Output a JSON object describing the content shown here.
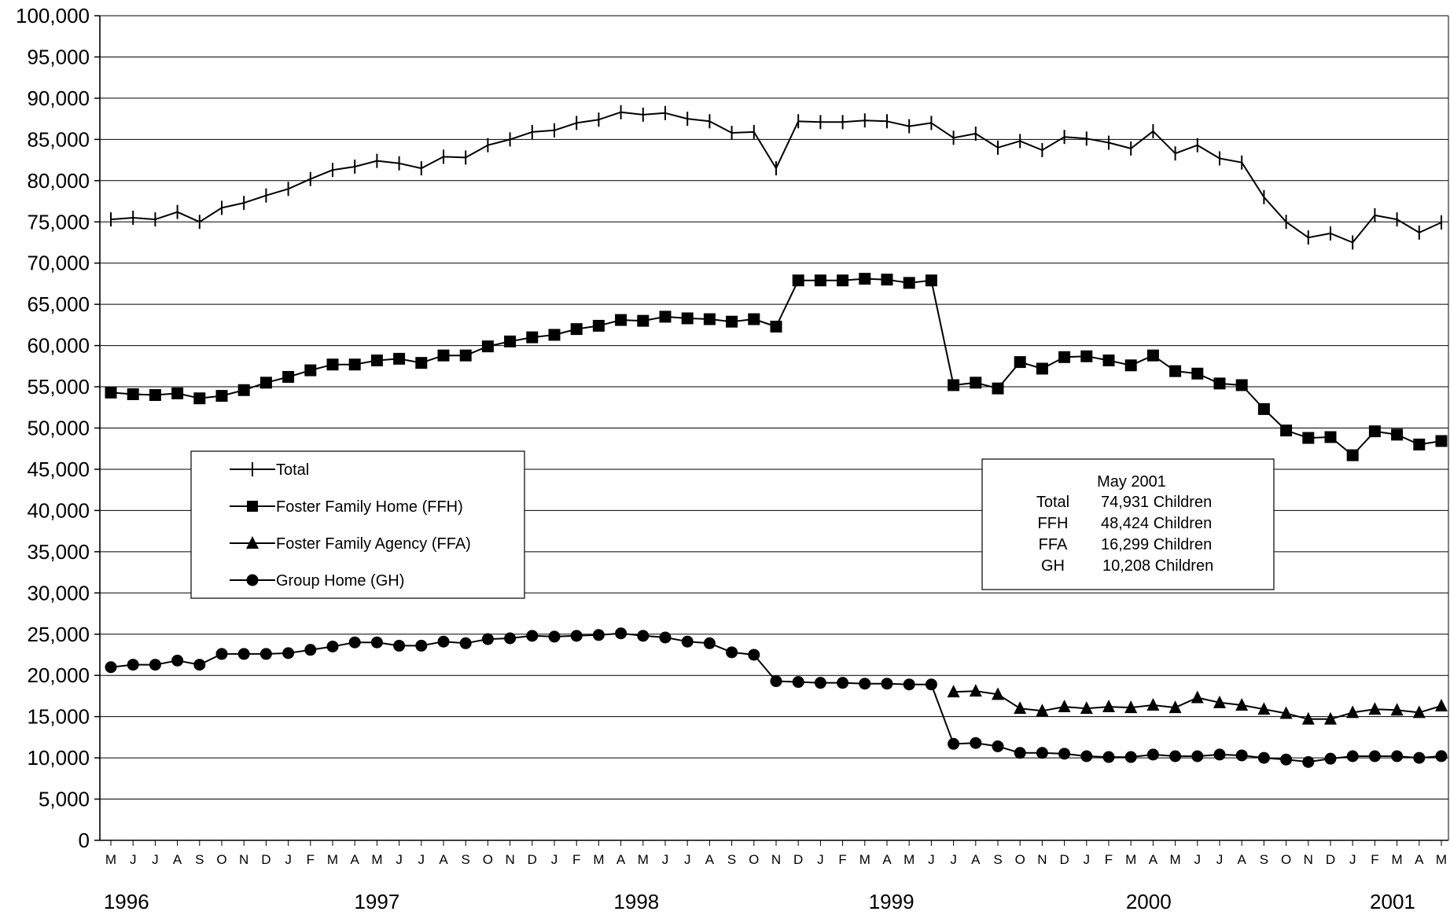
{
  "chart_data": {
    "type": "line",
    "title": "",
    "xlabel": "",
    "ylabel": "",
    "ylim": [
      0,
      100000
    ],
    "y_ticks": [
      "0",
      "5,000",
      "10,000",
      "15,000",
      "20,000",
      "25,000",
      "30,000",
      "35,000",
      "40,000",
      "45,000",
      "50,000",
      "55,000",
      "60,000",
      "65,000",
      "70,000",
      "75,000",
      "80,000",
      "85,000",
      "90,000",
      "95,000",
      "100,000"
    ],
    "grid": "horizontal",
    "month_labels": [
      "M",
      "J",
      "J",
      "A",
      "S",
      "O",
      "N",
      "D",
      "J",
      "F",
      "M",
      "A",
      "M",
      "J",
      "J",
      "A",
      "S",
      "O",
      "N",
      "D",
      "J",
      "F",
      "M",
      "A",
      "M",
      "J",
      "J",
      "A",
      "S",
      "O",
      "N",
      "D",
      "J",
      "F",
      "M",
      "A",
      "M",
      "J",
      "J",
      "A",
      "S",
      "O",
      "N",
      "D",
      "J",
      "F",
      "M",
      "A",
      "M",
      "J",
      "J",
      "A",
      "S",
      "O",
      "N",
      "D",
      "J",
      "F",
      "M",
      "A",
      "M"
    ],
    "year_labels": [
      {
        "label": "1996",
        "index": 0.7
      },
      {
        "label": "1997",
        "index": 12
      },
      {
        "label": "1998",
        "index": 23.7
      },
      {
        "label": "1999",
        "index": 35.2
      },
      {
        "label": "2000",
        "index": 46.8
      },
      {
        "label": "2001",
        "index": 57.8
      }
    ],
    "series": [
      {
        "name": "Total",
        "marker": "plus",
        "start_index": 0,
        "values": [
          75300,
          75500,
          75300,
          76200,
          75000,
          76700,
          77300,
          78200,
          79000,
          80200,
          81300,
          81700,
          82400,
          82100,
          81500,
          82900,
          82800,
          84300,
          85000,
          85900,
          86100,
          87000,
          87400,
          88300,
          88000,
          88200,
          87500,
          87200,
          85800,
          85900,
          81500,
          87200,
          87100,
          87100,
          87300,
          87200,
          86600,
          87000,
          85200,
          85700,
          84000,
          84800,
          83700,
          85300,
          85100,
          84600,
          83900,
          86000,
          83300,
          84300,
          82700,
          82200,
          78000,
          75000,
          73100,
          73600,
          72500,
          75800,
          75300,
          73700,
          74931
        ]
      },
      {
        "name": "Foster Family Home (FFH)",
        "marker": "square",
        "start_index": 0,
        "values": [
          54300,
          54100,
          54000,
          54200,
          53600,
          53900,
          54600,
          55500,
          56200,
          57000,
          57700,
          57700,
          58200,
          58400,
          57900,
          58800,
          58800,
          59900,
          60500,
          61000,
          61300,
          62000,
          62400,
          63100,
          63000,
          63500,
          63300,
          63200,
          62900,
          63200,
          62300,
          67900,
          67900,
          67900,
          68100,
          68000,
          67600,
          67900,
          55200,
          55500,
          54800,
          58000,
          57200,
          58600,
          58700,
          58200,
          57600,
          58800,
          56900,
          56600,
          55400,
          55200,
          52300,
          49700,
          48800,
          48900,
          46700,
          49600,
          49200,
          48000,
          48424
        ]
      },
      {
        "name": "Foster Family Agency (FFA)",
        "marker": "triangle",
        "start_index": 38,
        "values": [
          18000,
          18100,
          17700,
          16000,
          15700,
          16200,
          16000,
          16200,
          16100,
          16400,
          16100,
          17300,
          16700,
          16400,
          15900,
          15400,
          14700,
          14700,
          15500,
          15900,
          15800,
          15500,
          16299
        ]
      },
      {
        "name": "Group Home (GH)",
        "marker": "circle",
        "start_index": 0,
        "values": [
          21000,
          21300,
          21300,
          21800,
          21300,
          22600,
          22600,
          22600,
          22700,
          23100,
          23500,
          24000,
          24000,
          23600,
          23600,
          24100,
          23900,
          24400,
          24500,
          24800,
          24700,
          24800,
          24900,
          25100,
          24800,
          24600,
          24100,
          23900,
          22800,
          22500,
          19300,
          19200,
          19100,
          19100,
          19000,
          19000,
          18900,
          18900,
          11700,
          11800,
          11400,
          10600,
          10600,
          10500,
          10200,
          10100,
          10100,
          10400,
          10200,
          10200,
          10400,
          10300,
          10000,
          9800,
          9500,
          9900,
          10200,
          10200,
          10200,
          10000,
          10208
        ]
      }
    ],
    "legend": {
      "placement": "left-middle",
      "entries": [
        "Total",
        "Foster Family Home (FFH)",
        "Foster Family Agency (FFA)",
        "Group Home (GH)"
      ]
    },
    "annotation": {
      "placement": "right-middle",
      "title": "May 2001",
      "rows": [
        {
          "label": "Total",
          "value": "74,931 Children"
        },
        {
          "label": "FFH",
          "value": "48,424 Children"
        },
        {
          "label": "FFA",
          "value": "16,299 Children"
        },
        {
          "label": "GH",
          "value": "10,208 Children"
        }
      ]
    }
  }
}
